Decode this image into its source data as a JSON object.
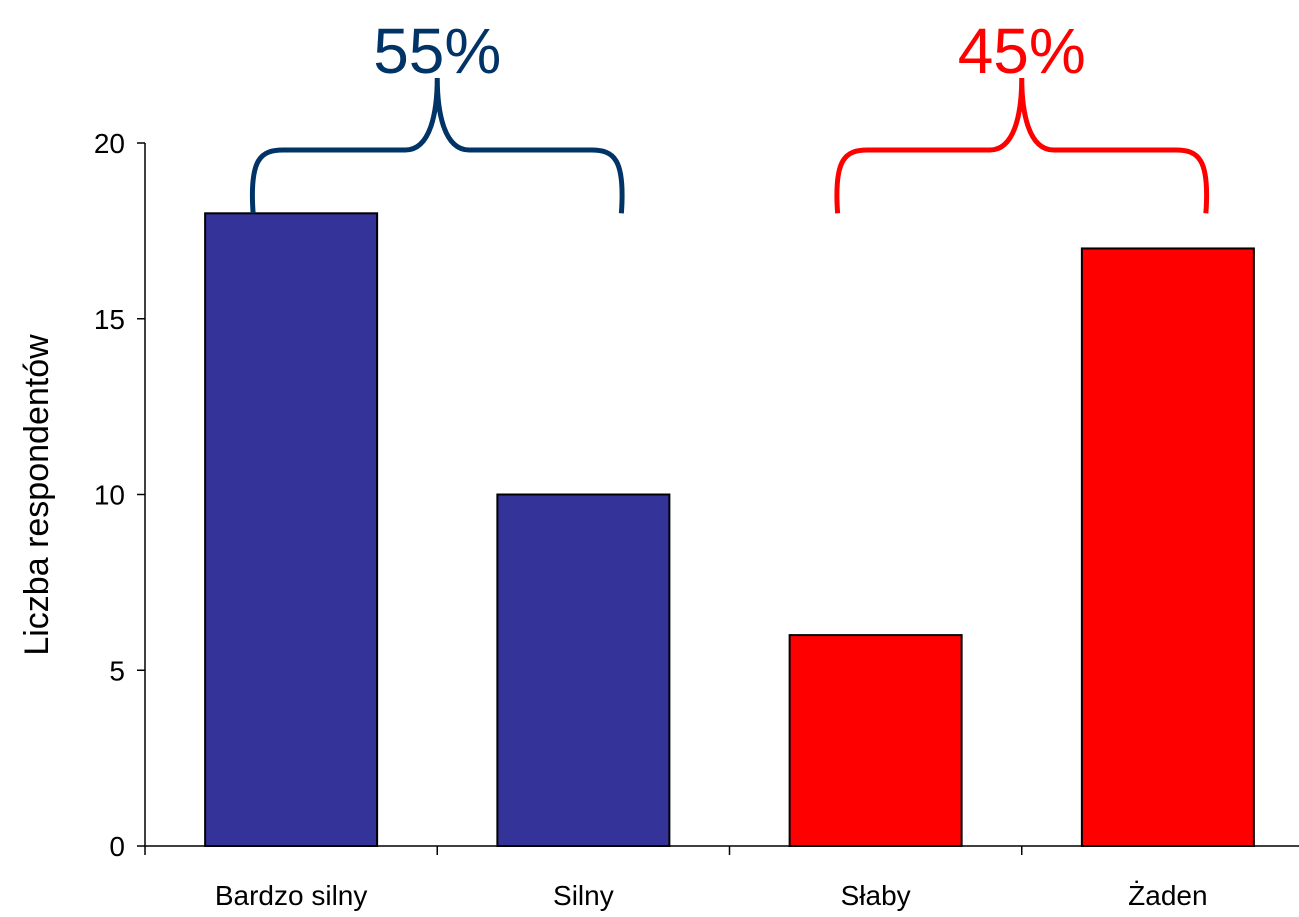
{
  "chart_data": {
    "type": "bar",
    "categories": [
      "Bardzo silny",
      "Silny",
      "Słaby",
      "Żaden"
    ],
    "values": [
      18,
      10,
      6,
      17
    ],
    "bar_colors": [
      "#333399",
      "#333399",
      "#ff0000",
      "#ff0000"
    ],
    "ylabel": "Liczba respondentów",
    "xlabel": "",
    "ylim": [
      0,
      20
    ],
    "yticks": [
      0,
      5,
      10,
      15,
      20
    ],
    "grid": false,
    "annotations": [
      {
        "text": "55%",
        "color": "#003366",
        "spans": [
          "Bardzo silny",
          "Silny"
        ]
      },
      {
        "text": "45%",
        "color": "#ff0000",
        "spans": [
          "Słaby",
          "Żaden"
        ]
      }
    ]
  }
}
